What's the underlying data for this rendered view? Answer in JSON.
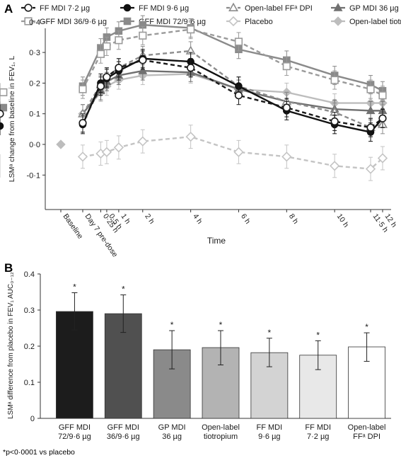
{
  "panel_a_label": "A",
  "panel_b_label": "B",
  "footnote": "*p<0·0001 vs placebo",
  "colors": {
    "ff72": "#1a1a1a",
    "ff96": "#111111",
    "open_ff": "#8c8c8c",
    "gp36": "#707070",
    "gff36": "#9a9a9a",
    "gff72": "#8a8a8a",
    "placebo": "#c4c4c4",
    "tio": "#bdbdbd"
  },
  "chart_data": [
    {
      "type": "line",
      "ylabel": "LSMᵃ change from baseline in FEV₁, L",
      "xlabel": "Time",
      "ylim": [
        -0.15,
        0.42
      ],
      "yticks": [
        -0.1,
        0.0,
        0.1,
        0.2,
        0.3,
        0.4
      ],
      "ytick_labels": [
        "-0·1",
        "0·0",
        "0·1",
        "0·2",
        "0·3",
        "0·4"
      ],
      "x_categories": [
        "Baseline",
        "Day 7 pre-dose",
        "0·25 h",
        "0·5 h",
        "1 h",
        "2 h",
        "4 h",
        "6 h",
        "8 h",
        "10 h",
        "11·5 h",
        "12 h"
      ],
      "x_hours": [
        -2,
        -0.5,
        0.25,
        0.5,
        1,
        2,
        4,
        6,
        8,
        10,
        11.5,
        12
      ],
      "baseline_value": 0.0,
      "legend_position": "top",
      "series": [
        {
          "name": "FF MDI 7·2 µg",
          "marker": "circle-open",
          "dash": "dashed",
          "color_key": "ff72",
          "values": [
            0.07,
            0.19,
            0.22,
            0.25,
            0.275,
            0.25,
            0.16,
            0.12,
            0.075,
            0.055,
            0.085,
            0.1
          ]
        },
        {
          "name": "FF MDI 9·6 µg",
          "marker": "circle-filled",
          "dash": "solid",
          "color_key": "ff96",
          "values": [
            0.065,
            0.2,
            0.215,
            0.24,
            0.28,
            0.27,
            0.19,
            0.11,
            0.065,
            0.04,
            0.085,
            0.06
          ]
        },
        {
          "name": "Open-label FFᵃ DPI",
          "marker": "triangle-open",
          "dash": "dashed",
          "color_key": "open_ff",
          "values": [
            0.1,
            0.195,
            0.22,
            0.25,
            0.29,
            0.305,
            0.19,
            0.14,
            0.105,
            0.055,
            0.065,
            0.07
          ]
        },
        {
          "name": "GP MDI 36 µg",
          "marker": "triangle-filled",
          "dash": "solid",
          "color_key": "gp36",
          "values": [
            0.1,
            0.175,
            0.205,
            0.225,
            0.24,
            0.235,
            0.18,
            0.14,
            0.115,
            0.11,
            0.11,
            0.11
          ]
        },
        {
          "name": "GFF MDI 36/9·6 µg",
          "marker": "square-open",
          "dash": "dashed",
          "color_key": "gff36",
          "values": [
            0.18,
            0.295,
            0.32,
            0.34,
            0.355,
            0.375,
            0.335,
            0.255,
            0.21,
            0.18,
            0.16,
            0.17
          ]
        },
        {
          "name": "GFF MDI 72/9·6 µg",
          "marker": "square-filled",
          "dash": "solid",
          "color_key": "gff72",
          "values": [
            0.19,
            0.315,
            0.35,
            0.37,
            0.39,
            0.38,
            0.31,
            0.275,
            0.225,
            0.195,
            0.175,
            0.12
          ]
        },
        {
          "name": "Placebo",
          "marker": "diamond-open",
          "dash": "dashed",
          "color_key": "placebo",
          "values": [
            -0.04,
            -0.03,
            -0.025,
            -0.01,
            0.01,
            0.025,
            -0.025,
            -0.04,
            -0.07,
            -0.08,
            -0.045,
            -0.07
          ]
        },
        {
          "name": "Open-label tiotropium",
          "marker": "diamond-filled",
          "dash": "solid",
          "color_key": "tio",
          "values": [
            0.1,
            0.17,
            0.19,
            0.21,
            0.225,
            0.23,
            0.18,
            0.17,
            0.135,
            0.135,
            0.135,
            0.135
          ]
        }
      ]
    },
    {
      "type": "bar",
      "ylabel": "LSMᵃ difference from placebo in FEV₁ AUC₀₋₁₂",
      "ylim": [
        0,
        0.4
      ],
      "yticks": [
        0,
        0.1,
        0.2,
        0.3,
        0.4
      ],
      "ytick_labels": [
        "0",
        "0.1",
        "0.2",
        "0.3",
        "0.4"
      ],
      "categories": [
        [
          "GFF MDI",
          "72/9·6 µg"
        ],
        [
          "GFF MDI",
          "36/9·6 µg"
        ],
        [
          "GP MDI",
          "36 µg"
        ],
        [
          "Open-label",
          "tiotropium"
        ],
        [
          "FF MDI",
          "9·6 µg"
        ],
        [
          "FF MDI",
          "7·2 µg"
        ],
        [
          "Open-label",
          "FFᵃ DPI"
        ]
      ],
      "values": [
        0.296,
        0.29,
        0.19,
        0.196,
        0.182,
        0.175,
        0.198
      ],
      "ci_lower": [
        0.245,
        0.238,
        0.137,
        0.148,
        0.143,
        0.135,
        0.158
      ],
      "ci_upper": [
        0.348,
        0.342,
        0.243,
        0.243,
        0.222,
        0.215,
        0.237
      ],
      "significance": [
        "*",
        "*",
        "*",
        "*",
        "*",
        "*",
        "*"
      ],
      "bar_colors": [
        "#1c1c1c",
        "#505050",
        "#8a8a8a",
        "#b3b3b3",
        "#d3d3d3",
        "#e8e8e8",
        "#ffffff"
      ]
    }
  ]
}
